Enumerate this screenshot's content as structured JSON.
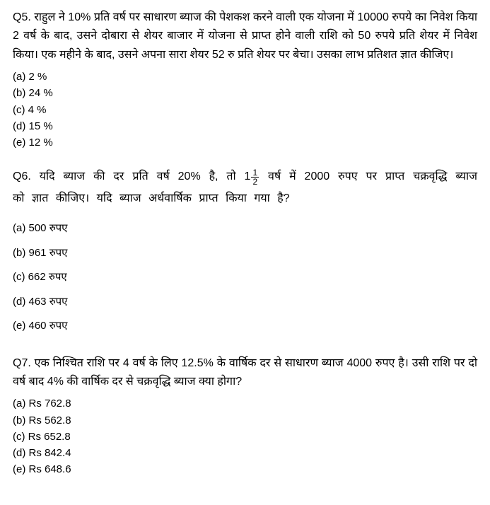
{
  "questions": [
    {
      "number": "Q5.",
      "text": "राहुल ने 10% प्रति वर्ष पर साधारण ब्याज की पेशकश करने वाली एक योजना में 10000 रुपये का निवेश किया 2 वर्ष के बाद, उसने दोबारा से शेयर बाजार में योजना से प्राप्त होने वाली राशि को 50 रुपये प्रति शेयर में निवेश किया। एक महीने के बाद, उसने अपना सारा शेयर 52 रु प्रति शेयर पर बेचा। उसका लाभ प्रतिशत ज्ञात कीजिए।",
      "options": {
        "a": "(a) 2 %",
        "b": "(b) 24 %",
        "c": "(c) 4 %",
        "d": "(d) 15 %",
        "e": "(e) 12 %"
      }
    },
    {
      "number": "Q6.",
      "text_before_frac": "यदि ब्याज की दर प्रति वर्ष 20% है, तो 1",
      "frac_num": "1",
      "frac_den": "2",
      "text_after_frac": " वर्ष में 2000 रुपए पर प्राप्त चक्रवृद्धि ब्याज को ज्ञात कीजिए। यदि ब्याज अर्धवार्षिक प्राप्त किया गया है?",
      "options": {
        "a": "(a) 500 रुपए",
        "b": "(b) 961 रुपए",
        "c": "(c) 662  रुपए",
        "d": "(d) 463  रुपए",
        "e": "(e) 460 रुपए"
      }
    },
    {
      "number": "Q7.",
      "text": " एक निश्चित राशि पर 4 वर्ष के लिए 12.5% के वार्षिक दर से साधारण ब्याज 4000 रुपए है। उसी राशि पर दो वर्ष बाद 4% की वार्षिक दर से चक्रवृद्धि ब्याज क्या होगा?",
      "options": {
        "a": "(a) Rs 762.8",
        "b": "(b) Rs 562.8",
        "c": "(c) Rs 652.8",
        "d": "(d) Rs 842.4",
        "e": "(e) Rs 648.6"
      }
    }
  ],
  "colors": {
    "text": "#000000",
    "background": "#ffffff"
  },
  "typography": {
    "question_fontsize": 16,
    "option_fontsize": 15,
    "font_family": "Arial, sans-serif"
  }
}
